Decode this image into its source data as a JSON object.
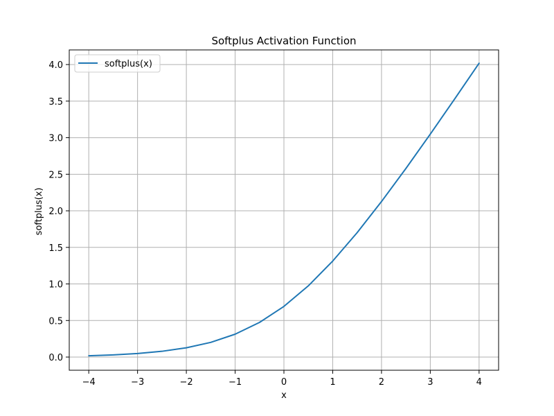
{
  "chart_data": {
    "type": "line",
    "title": "Softplus Activation Function",
    "xlabel": "x",
    "ylabel": "softplus(x)",
    "xlim": [
      -4.4,
      4.4
    ],
    "ylim": [
      -0.18,
      4.2
    ],
    "x_ticks": [
      -4,
      -3,
      -2,
      -1,
      0,
      1,
      2,
      3,
      4
    ],
    "x_tick_labels": [
      "−4",
      "−3",
      "−2",
      "−1",
      "0",
      "1",
      "2",
      "3",
      "4"
    ],
    "y_ticks": [
      0.0,
      0.5,
      1.0,
      1.5,
      2.0,
      2.5,
      3.0,
      3.5,
      4.0
    ],
    "y_tick_labels": [
      "0.0",
      "0.5",
      "1.0",
      "1.5",
      "2.0",
      "2.5",
      "3.0",
      "3.5",
      "4.0"
    ],
    "grid": true,
    "legend_position": "top-left",
    "series": [
      {
        "name": "softplus(x)",
        "color": "#1f77b4",
        "x": [
          -4.0,
          -3.5,
          -3.0,
          -2.5,
          -2.0,
          -1.5,
          -1.0,
          -0.5,
          0.0,
          0.5,
          1.0,
          1.5,
          2.0,
          2.5,
          3.0,
          3.5,
          4.0
        ],
        "y": [
          0.018,
          0.03,
          0.049,
          0.079,
          0.127,
          0.201,
          0.313,
          0.474,
          0.693,
          0.974,
          1.313,
          1.701,
          2.127,
          2.579,
          3.049,
          3.53,
          4.018
        ]
      }
    ],
    "colors": {
      "grid": "#b0b0b0",
      "axis": "#000000",
      "background": "#ffffff"
    }
  }
}
